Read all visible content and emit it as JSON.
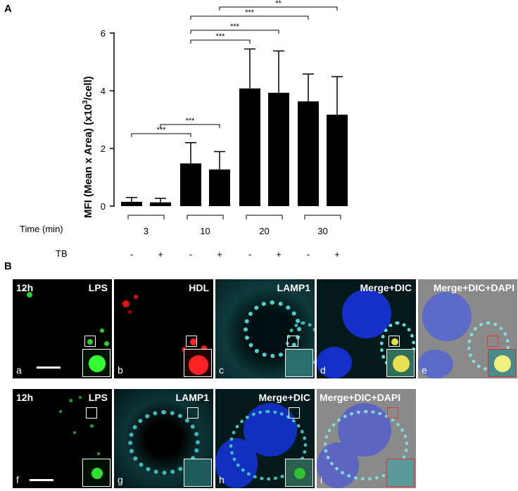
{
  "panel_a_label": "A",
  "panel_b_label": "B",
  "chart_data": {
    "type": "bar",
    "ylabel": "MFI (Mean x Area)  (x10",
    "ylabel_sup": "3",
    "ylabel_tail": "/cell)",
    "ylim": [
      0,
      6
    ],
    "yticks": [
      "0",
      "2",
      "4",
      "6"
    ],
    "ytick_values": [
      0,
      2,
      4,
      6
    ],
    "categories": [
      "3 -",
      "3 +",
      "10 -",
      "10 +",
      "20 -",
      "20 +",
      "30 -",
      "30 +"
    ],
    "values": [
      0.15,
      0.13,
      1.48,
      1.27,
      4.08,
      3.93,
      3.63,
      3.17
    ],
    "errors": [
      0.15,
      0.14,
      0.72,
      0.62,
      1.37,
      1.45,
      0.95,
      1.32
    ],
    "time_row_label": "Time (min)",
    "time_groups": [
      "3",
      "10",
      "20",
      "30"
    ],
    "tb_row_label": "TB",
    "tb_marks": [
      "-",
      "+",
      "-",
      "+",
      "-",
      "+",
      "-",
      "+"
    ],
    "significance": [
      {
        "from": 0,
        "to": 2,
        "label": "***"
      },
      {
        "from": 1,
        "to": 3,
        "label": "***"
      },
      {
        "from": 2,
        "to": 4,
        "label": "***"
      },
      {
        "from": 2,
        "to": 5,
        "label": "***"
      },
      {
        "from": 2,
        "to": 6,
        "label": "***"
      },
      {
        "from": 3,
        "to": 7,
        "label": "**"
      }
    ]
  },
  "micrographs": {
    "row1": [
      {
        "time": "12h",
        "channel": "LPS",
        "letter": "a"
      },
      {
        "channel": "HDL",
        "letter": "b"
      },
      {
        "channel": "LAMP1",
        "letter": "c"
      },
      {
        "channel": "Merge+DIC",
        "letter": "d"
      },
      {
        "channel": "Merge+DIC+DAPI",
        "letter": "e"
      }
    ],
    "row2": [
      {
        "time": "12h",
        "channel": "LPS",
        "letter": "f"
      },
      {
        "channel": "LAMP1",
        "letter": "g"
      },
      {
        "channel": "Merge+DIC",
        "letter": "h"
      },
      {
        "channel": "Merge+DIC+DAPI",
        "letter": "i"
      }
    ]
  }
}
